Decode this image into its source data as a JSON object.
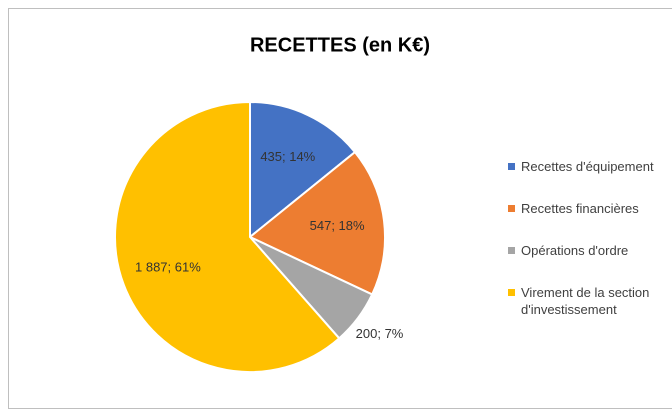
{
  "chart_data": {
    "type": "pie",
    "title": "RECETTES (en K€)",
    "categories": [
      "Recettes d'équipement",
      "Recettes financières",
      "Opérations d'ordre",
      "Virement de la section d'investissement"
    ],
    "values": [
      435,
      547,
      200,
      1887
    ],
    "value_labels": [
      "435; 14%",
      "547; 18%",
      "200; 7%",
      "1 887; 61%"
    ],
    "colors": [
      "#4472c4",
      "#ed7d31",
      "#a5a5a5",
      "#ffc000"
    ],
    "legend": "right"
  }
}
